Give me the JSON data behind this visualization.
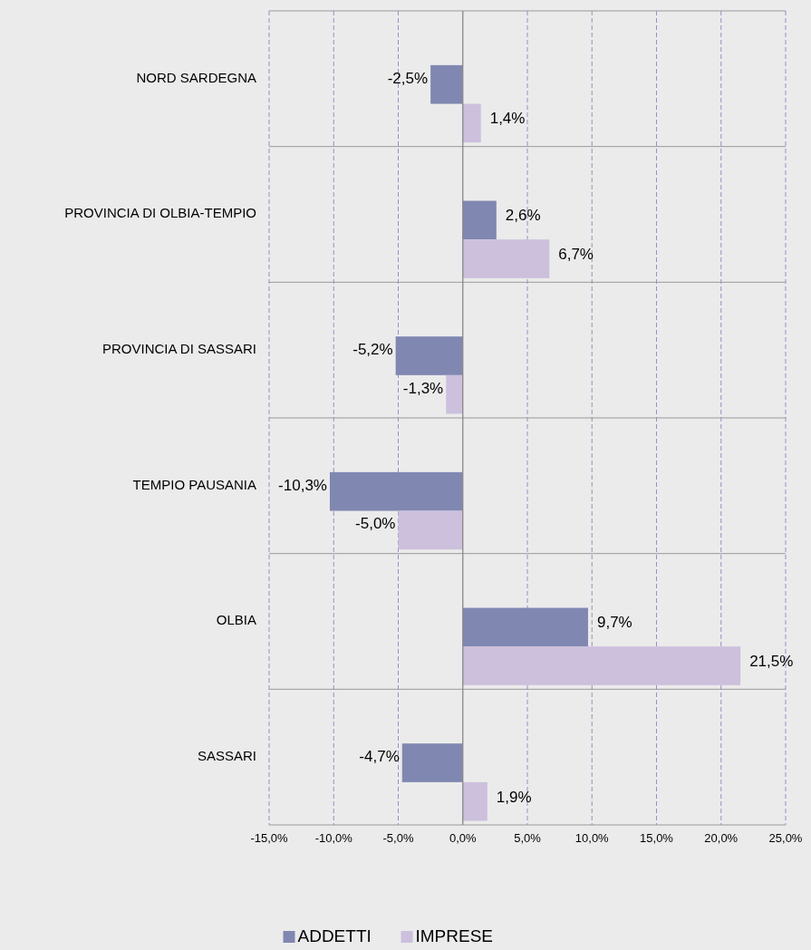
{
  "chart_data": {
    "type": "bar",
    "orientation": "horizontal",
    "categories": [
      "NORD SARDEGNA",
      "PROVINCIA DI OLBIA-TEMPIO",
      "PROVINCIA DI SASSARI",
      "TEMPIO PAUSANIA",
      "OLBIA",
      "SASSARI"
    ],
    "series": [
      {
        "name": "ADDETTI",
        "color": "#8087b1",
        "values": [
          -2.5,
          2.6,
          -5.2,
          -10.3,
          9.7,
          -4.7
        ],
        "value_labels": [
          "-2,5%",
          "2,6%",
          "-5,2%",
          "-10,3%",
          "9,7%",
          "-4,7%"
        ]
      },
      {
        "name": "IMPRESE",
        "color": "#ccc0dd",
        "values": [
          1.4,
          6.7,
          -1.3,
          -5.0,
          21.5,
          1.9
        ],
        "value_labels": [
          "1,4%",
          "6,7%",
          "-1,3%",
          "-5,0%",
          "21,5%",
          "1,9%"
        ]
      }
    ],
    "xlim": [
      -15,
      25
    ],
    "xticks": [
      {
        "value": -15,
        "label": "-15,0%"
      },
      {
        "value": -10,
        "label": "-10,0%"
      },
      {
        "value": -5,
        "label": "-5,0%"
      },
      {
        "value": 0,
        "label": "0,0%"
      },
      {
        "value": 5,
        "label": "5,0%"
      },
      {
        "value": 10,
        "label": "10,0%"
      },
      {
        "value": 15,
        "label": "15,0%"
      },
      {
        "value": 20,
        "label": "20,0%"
      },
      {
        "value": 25,
        "label": "25,0%"
      }
    ],
    "grid": true,
    "legend": "bottom"
  }
}
